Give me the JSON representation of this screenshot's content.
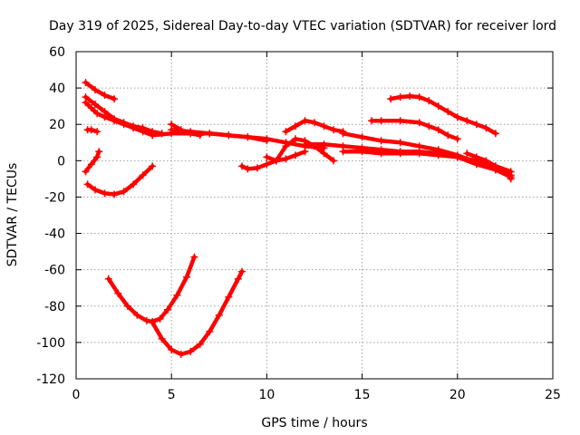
{
  "chart_data": {
    "type": "scatter",
    "title": "Day 319 of 2025, Sidereal Day-to-day VTEC variation (SDTVAR) for receiver lord",
    "xlabel": "GPS time / hours",
    "ylabel": "SDTVAR / TECUs",
    "xlim": [
      0,
      25
    ],
    "ylim": [
      -120,
      60
    ],
    "xticks": [
      0,
      5,
      10,
      15,
      20,
      25
    ],
    "yticks": [
      -120,
      -100,
      -80,
      -60,
      -40,
      -20,
      0,
      20,
      40,
      60
    ],
    "xtick_labels": [
      "0",
      "5",
      "10",
      "15",
      "20",
      "25"
    ],
    "ytick_labels": [
      "-120",
      "-100",
      "-80",
      "-60",
      "-40",
      "-20",
      "0",
      "20",
      "40",
      "60"
    ],
    "grid": true,
    "marker": "+",
    "color": "#ff0000",
    "series": [
      {
        "name": "s1",
        "x": [
          0.5,
          1.0,
          1.5,
          2.0
        ],
        "y": [
          43,
          39,
          36,
          34
        ]
      },
      {
        "name": "s2",
        "x": [
          0.5,
          1.0,
          1.5,
          2.0,
          2.5,
          3.0,
          3.5,
          4.0,
          4.5
        ],
        "y": [
          35,
          31,
          27,
          23,
          21,
          19,
          18,
          16,
          15
        ]
      },
      {
        "name": "s3",
        "x": [
          0.5,
          0.8,
          1.1,
          1.5,
          2.0,
          2.5,
          3.0,
          3.5,
          4.0
        ],
        "y": [
          32,
          29,
          26,
          24,
          22,
          20,
          18,
          16,
          14
        ]
      },
      {
        "name": "s4",
        "x": [
          0.6,
          0.8,
          1.1
        ],
        "y": [
          17,
          17,
          16
        ]
      },
      {
        "name": "s5",
        "x": [
          0.5,
          0.8,
          1.1,
          1.2
        ],
        "y": [
          -6,
          -2,
          2,
          5
        ]
      },
      {
        "name": "s6",
        "x": [
          0.6,
          1.0,
          1.5,
          2.0,
          2.5,
          3.0,
          3.5,
          4.0
        ],
        "y": [
          -13,
          -16,
          -18,
          -18.5,
          -17,
          -13,
          -8,
          -3
        ]
      },
      {
        "name": "s7",
        "x": [
          1.7,
          2.2,
          2.7,
          3.2,
          3.7,
          4.0,
          4.4,
          4.8,
          5.3,
          5.8,
          6.2
        ],
        "y": [
          -65,
          -73,
          -80,
          -85,
          -88,
          -88.5,
          -87,
          -82,
          -74,
          -64,
          -53
        ]
      },
      {
        "name": "s8",
        "x": [
          4.0,
          4.5,
          5.0,
          5.5,
          6.0,
          6.5,
          7.0,
          7.5,
          8.0,
          8.5,
          8.7
        ],
        "y": [
          -89,
          -98,
          -104,
          -106.5,
          -105,
          -101,
          -94,
          -85,
          -75,
          -65,
          -61
        ]
      },
      {
        "name": "s9",
        "x": [
          5.0,
          5.5,
          6.0,
          6.5
        ],
        "y": [
          20,
          17,
          15,
          14
        ]
      },
      {
        "name": "s10",
        "x": [
          4.0,
          5.0,
          6.0,
          7.0,
          8.0,
          9.0,
          10.0,
          11.0,
          12.0,
          13.0
        ],
        "y": [
          14,
          15,
          15,
          15,
          14,
          13,
          12,
          10,
          8,
          7
        ]
      },
      {
        "name": "s11",
        "x": [
          5.0,
          6.0,
          7.0,
          8.0,
          9.0,
          10.0
        ],
        "y": [
          17,
          16,
          15,
          14,
          13,
          11
        ]
      },
      {
        "name": "s12",
        "x": [
          8.7,
          9.0,
          9.5,
          10.0,
          10.5,
          11.0,
          11.5,
          12.0
        ],
        "y": [
          -3,
          -4.5,
          -4,
          -2,
          0,
          1,
          3,
          5
        ]
      },
      {
        "name": "s13",
        "x": [
          10.0,
          10.5,
          11.0,
          11.5,
          12.0,
          12.5,
          13.0,
          13.5
        ],
        "y": [
          2,
          0,
          8,
          12,
          11,
          8,
          4,
          0
        ]
      },
      {
        "name": "s14",
        "x": [
          11.0,
          11.5,
          12.0,
          12.5,
          13.0,
          13.5,
          14.0
        ],
        "y": [
          16,
          19,
          22,
          21,
          19,
          17,
          16
        ]
      },
      {
        "name": "s15",
        "x": [
          12.0,
          13.0,
          14.0,
          15.0,
          16.0,
          17.0,
          18.0,
          19.0,
          20.0,
          21.0,
          22.0,
          22.8
        ],
        "y": [
          9,
          9,
          8,
          7,
          6,
          5,
          5,
          4,
          2,
          -2,
          -5,
          -8
        ]
      },
      {
        "name": "s16",
        "x": [
          14.0,
          15.0,
          16.0,
          17.0,
          18.0,
          19.0,
          20.0,
          21.0,
          22.0,
          22.8
        ],
        "y": [
          5,
          5,
          4,
          4,
          4,
          3,
          2,
          0,
          -3,
          -6
        ]
      },
      {
        "name": "s17",
        "x": [
          14.0,
          15.0,
          16.0,
          17.0,
          18.0,
          19.0,
          20.0,
          21.0,
          22.0,
          22.8
        ],
        "y": [
          15,
          13,
          11,
          10,
          8,
          6,
          3,
          -1,
          -5,
          -9
        ]
      },
      {
        "name": "s18",
        "x": [
          15.5,
          16.0,
          17.0,
          18.0,
          18.5,
          19.0,
          19.5,
          20.0
        ],
        "y": [
          22,
          22,
          22,
          21,
          19,
          17,
          14,
          12
        ]
      },
      {
        "name": "s19",
        "x": [
          16.5,
          17.0,
          17.5,
          18.0,
          18.5,
          19.0,
          19.5,
          20.0,
          20.5,
          21.0,
          21.5,
          22.0
        ],
        "y": [
          34,
          35,
          35.5,
          35,
          33,
          30,
          27,
          24,
          22,
          20,
          18,
          15
        ]
      },
      {
        "name": "s20",
        "x": [
          20.5,
          21.0,
          21.5,
          22.0,
          22.5,
          22.8
        ],
        "y": [
          4,
          2,
          0,
          -3,
          -6,
          -10
        ]
      }
    ]
  }
}
